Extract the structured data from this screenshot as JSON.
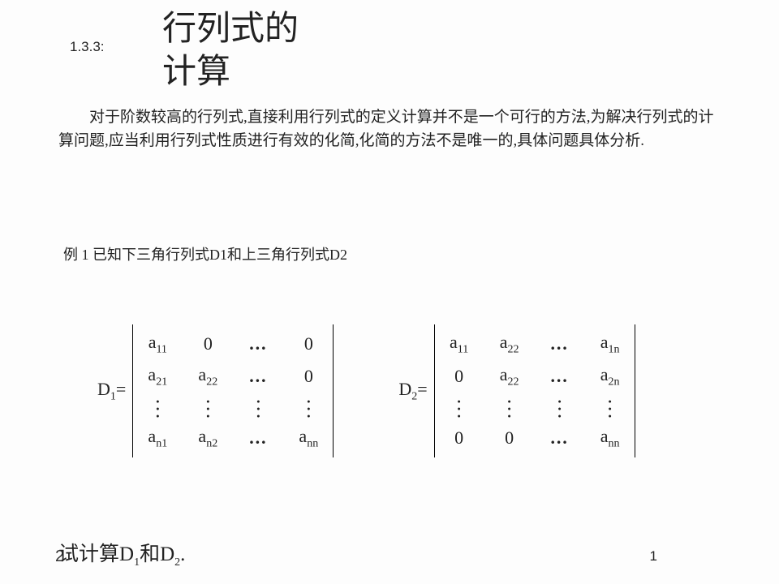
{
  "section_number": "1.3.3:",
  "title_line1": "行列式的",
  "title_line2": "计算",
  "intro": "对于阶数较高的行列式,直接利用行列式的定义计算并不是一个可行的方法,为解决行列式的计算问题,应当利用行列式性质进行有效的化简,化简的方法不是唯一的,具体问题具体分析.",
  "example_label": "例 1 已知下三角行列式D1和上三角行列式D2",
  "d1_label_var": "D",
  "d1_label_sub": "1",
  "d1_label_eq": "=",
  "d2_label_var": "D",
  "d2_label_sub": "2",
  "d2_label_eq": "=",
  "m": {
    "a11_base": "a",
    "a11_sub": "11",
    "a21_base": "a",
    "a21_sub": "21",
    "a22_base": "a",
    "a22_sub": "22",
    "an1_base": "a",
    "an1_sub": "n1",
    "an2_base": "a",
    "an2_sub": "n2",
    "ann_base": "a",
    "ann_sub": "nn",
    "a1n_base": "a",
    "a1n_sub": "1n",
    "a2n_base": "a",
    "a2n_sub": "2n",
    "zero": "0",
    "ellh": "…"
  },
  "task_prefix": "试计算",
  "task_d1_var": "D",
  "task_d1_sub": "1",
  "task_and": "和",
  "task_d2_var": "D",
  "task_d2_sub": "2",
  "task_period": ".",
  "page_number": "1",
  "cropped_left": "2"
}
